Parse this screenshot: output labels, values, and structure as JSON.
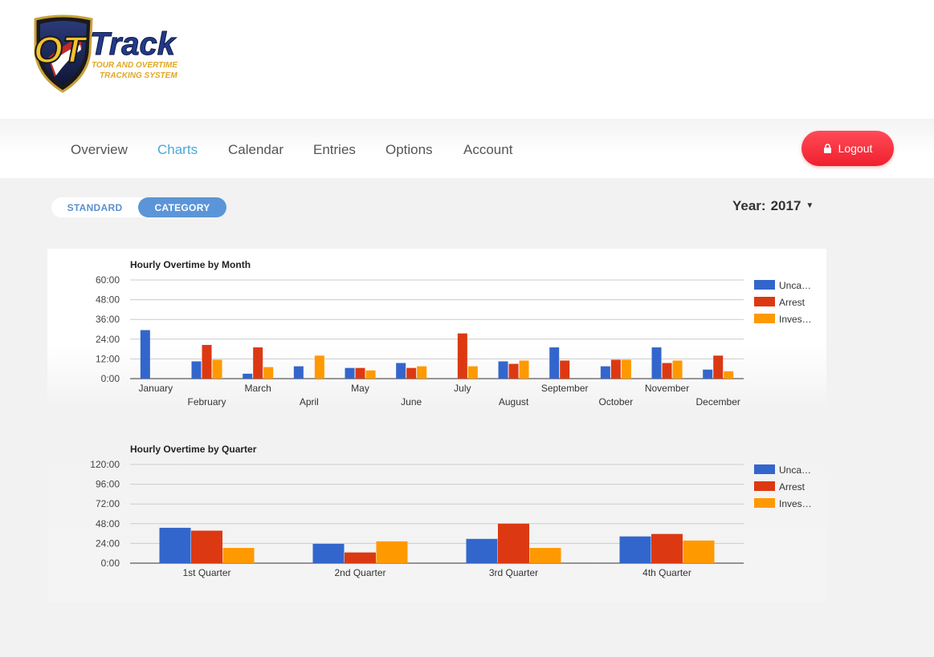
{
  "app": {
    "logo_word": "OTTrack",
    "logo_tagline_1": "TOUR AND OVERTIME",
    "logo_tagline_2": "TRACKING SYSTEM"
  },
  "nav": {
    "items": [
      {
        "label": "Overview"
      },
      {
        "label": "Charts"
      },
      {
        "label": "Calendar"
      },
      {
        "label": "Entries"
      },
      {
        "label": "Options"
      },
      {
        "label": "Account"
      }
    ],
    "active": "Charts",
    "logout_label": "Logout"
  },
  "view_toggle": {
    "standard_label": "STANDARD",
    "category_label": "CATEGORY",
    "selected": "CATEGORY"
  },
  "year_selector": {
    "label": "Year:",
    "value": "2017"
  },
  "colors": {
    "uncategorized": "#3366cc",
    "arrest": "#dc3912",
    "investigation": "#ff9900",
    "accent": "#4aa8d8",
    "logout": "#f0202e"
  },
  "chart_data": [
    {
      "type": "bar",
      "title": "Hourly Overtime by Month",
      "categories": [
        "January",
        "February",
        "March",
        "April",
        "May",
        "June",
        "July",
        "August",
        "September",
        "October",
        "November",
        "December"
      ],
      "y_ticks": [
        "0:00",
        "12:00",
        "24:00",
        "36:00",
        "48:00",
        "60:00"
      ],
      "ylim": [
        0,
        60
      ],
      "legend_position": "right",
      "series": [
        {
          "name": "Unca…",
          "color": "#3366cc",
          "values": [
            29.5,
            10.5,
            3,
            7.5,
            6.5,
            9.5,
            0,
            10.5,
            19,
            7.5,
            19,
            5.5
          ]
        },
        {
          "name": "Arrest",
          "color": "#dc3912",
          "values": [
            0,
            20.5,
            19,
            0,
            6.5,
            6.5,
            27.5,
            9,
            11,
            11.5,
            9.5,
            14
          ]
        },
        {
          "name": "Inves…",
          "color": "#ff9900",
          "values": [
            0,
            11.5,
            7,
            14,
            5,
            7.5,
            7.5,
            11,
            0,
            11.5,
            11,
            4.5
          ]
        }
      ]
    },
    {
      "type": "bar",
      "title": "Hourly Overtime by Quarter",
      "categories": [
        "1st Quarter",
        "2nd Quarter",
        "3rd Quarter",
        "4th Quarter"
      ],
      "y_ticks": [
        "0:00",
        "24:00",
        "48:00",
        "72:00",
        "96:00",
        "120:00"
      ],
      "ylim": [
        0,
        120
      ],
      "legend_position": "right",
      "series": [
        {
          "name": "Unca…",
          "color": "#3366cc",
          "values": [
            43,
            23.5,
            29.5,
            32.5
          ]
        },
        {
          "name": "Arrest",
          "color": "#dc3912",
          "values": [
            39.5,
            13,
            48,
            35.5
          ]
        },
        {
          "name": "Inves…",
          "color": "#ff9900",
          "values": [
            18.5,
            26.5,
            18.5,
            27.5
          ]
        }
      ]
    }
  ]
}
